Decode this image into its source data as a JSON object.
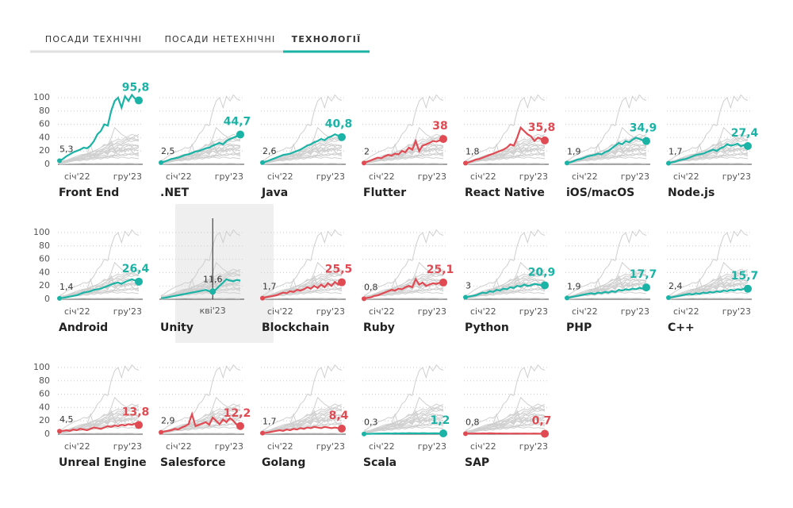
{
  "tabs": [
    "ПОСАДИ ТЕХНІЧНІ",
    "ПОСАДИ НЕТЕХНІЧНІ",
    "ТЕХНОЛОГІЇ"
  ],
  "active_tab": 2,
  "chart_data": {
    "type": "line",
    "categories": [
      "січ'22",
      null,
      null,
      null,
      null,
      null,
      null,
      null,
      null,
      null,
      null,
      null,
      null,
      null,
      null,
      "кві'23",
      null,
      null,
      null,
      null,
      null,
      null,
      null,
      "гру'23"
    ],
    "ylim": [
      0,
      110
    ],
    "yticks": [
      0,
      20,
      40,
      60,
      80,
      100
    ],
    "grid": true,
    "hover": {
      "series": 8,
      "index": 15
    },
    "series": [
      {
        "name": "Front End",
        "color": "#1ab3a6",
        "values": [
          5.3,
          8,
          12,
          15,
          18,
          20,
          22,
          25,
          24,
          28,
          35,
          45,
          50,
          60,
          58,
          80,
          95,
          100,
          85,
          102,
          95,
          104,
          98,
          95.8
        ],
        "value_labels": [
          "5,3",
          null,
          null,
          null,
          null,
          null,
          null,
          null,
          null,
          null,
          null,
          null,
          null,
          null,
          null,
          null,
          null,
          null,
          null,
          null,
          null,
          null,
          null,
          "95,8"
        ]
      },
      {
        "name": ".NET",
        "color": "#1ab3a6",
        "values": [
          2.5,
          4,
          6,
          8,
          9,
          10,
          12,
          14,
          15,
          17,
          19,
          20,
          22,
          24,
          25,
          28,
          30,
          32,
          30,
          35,
          38,
          40,
          42,
          44.7
        ],
        "value_labels": [
          "2,5",
          null,
          null,
          null,
          null,
          null,
          null,
          null,
          null,
          null,
          null,
          null,
          null,
          null,
          null,
          null,
          null,
          null,
          null,
          null,
          null,
          null,
          null,
          "44,7"
        ]
      },
      {
        "name": "Java",
        "color": "#1ab3a6",
        "values": [
          2.6,
          4,
          6,
          8,
          10,
          12,
          14,
          15,
          16,
          18,
          20,
          22,
          25,
          28,
          30,
          33,
          35,
          38,
          36,
          40,
          42,
          45,
          43,
          40.8
        ],
        "value_labels": [
          "2,6",
          null,
          null,
          null,
          null,
          null,
          null,
          null,
          null,
          null,
          null,
          null,
          null,
          null,
          null,
          null,
          null,
          null,
          null,
          null,
          null,
          null,
          null,
          "40,8"
        ]
      },
      {
        "name": "Flutter",
        "color": "#e04a52",
        "values": [
          2,
          4,
          6,
          8,
          10,
          9,
          12,
          14,
          13,
          16,
          15,
          20,
          18,
          25,
          22,
          35,
          20,
          28,
          30,
          32,
          35,
          34,
          36,
          38
        ],
        "value_labels": [
          "2",
          null,
          null,
          null,
          null,
          null,
          null,
          null,
          null,
          null,
          null,
          null,
          null,
          null,
          null,
          null,
          null,
          null,
          null,
          null,
          null,
          null,
          null,
          "38"
        ]
      },
      {
        "name": "React Native",
        "color": "#e04a52",
        "values": [
          1.8,
          3,
          5,
          7,
          8,
          10,
          12,
          14,
          16,
          18,
          20,
          22,
          25,
          30,
          28,
          40,
          55,
          50,
          45,
          42,
          35,
          40,
          38,
          35.8
        ],
        "value_labels": [
          "1,8",
          null,
          null,
          null,
          null,
          null,
          null,
          null,
          null,
          null,
          null,
          null,
          null,
          null,
          null,
          null,
          null,
          null,
          null,
          null,
          null,
          null,
          null,
          "35,8"
        ]
      },
      {
        "name": "iOS/macOS",
        "color": "#1ab3a6",
        "values": [
          1.9,
          3,
          5,
          7,
          8,
          10,
          12,
          13,
          14,
          16,
          15,
          18,
          20,
          24,
          28,
          32,
          30,
          35,
          33,
          37,
          40,
          38,
          36,
          34.9
        ],
        "value_labels": [
          "1,9",
          null,
          null,
          null,
          null,
          null,
          null,
          null,
          null,
          null,
          null,
          null,
          null,
          null,
          null,
          null,
          null,
          null,
          null,
          null,
          null,
          null,
          null,
          "34,9"
        ]
      },
      {
        "name": "Node.js",
        "color": "#1ab3a6",
        "values": [
          1.7,
          3,
          4,
          6,
          7,
          8,
          10,
          12,
          14,
          15,
          16,
          18,
          20,
          22,
          20,
          24,
          26,
          30,
          28,
          29,
          31,
          27,
          29,
          27.4
        ],
        "value_labels": [
          "1,7",
          null,
          null,
          null,
          null,
          null,
          null,
          null,
          null,
          null,
          null,
          null,
          null,
          null,
          null,
          null,
          null,
          null,
          null,
          null,
          null,
          null,
          null,
          "27,4"
        ]
      },
      {
        "name": "Android",
        "color": "#1ab3a6",
        "values": [
          1.4,
          2,
          3,
          4,
          5,
          6,
          8,
          10,
          11,
          12,
          14,
          15,
          16,
          18,
          20,
          22,
          24,
          25,
          23,
          26,
          28,
          30,
          28,
          26.4
        ],
        "value_labels": [
          "1,4",
          null,
          null,
          null,
          null,
          null,
          null,
          null,
          null,
          null,
          null,
          null,
          null,
          null,
          null,
          null,
          null,
          null,
          null,
          null,
          null,
          null,
          null,
          "26,4"
        ]
      },
      {
        "name": "Unity",
        "color": "#1ab3a6",
        "values": [
          1.5,
          2,
          3,
          4,
          5,
          6,
          7,
          8,
          9,
          10,
          11,
          12,
          13,
          14,
          12,
          11.6,
          15,
          20,
          25,
          30,
          28,
          27,
          29,
          28
        ],
        "value_labels": [
          null,
          null,
          null,
          null,
          null,
          null,
          null,
          null,
          null,
          null,
          null,
          null,
          null,
          null,
          null,
          "11,6",
          null,
          null,
          null,
          null,
          null,
          null,
          null,
          null
        ]
      },
      {
        "name": "Blockchain",
        "color": "#e04a52",
        "values": [
          1.7,
          3,
          4,
          5,
          6,
          8,
          10,
          9,
          12,
          11,
          14,
          13,
          15,
          18,
          16,
          20,
          17,
          22,
          18,
          24,
          20,
          26,
          22,
          25.5
        ],
        "value_labels": [
          "1,7",
          null,
          null,
          null,
          null,
          null,
          null,
          null,
          null,
          null,
          null,
          null,
          null,
          null,
          null,
          null,
          null,
          null,
          null,
          null,
          null,
          null,
          null,
          "25,5"
        ]
      },
      {
        "name": "Ruby",
        "color": "#e04a52",
        "values": [
          0.8,
          2,
          3,
          5,
          6,
          8,
          10,
          12,
          14,
          13,
          16,
          15,
          18,
          20,
          18,
          30,
          22,
          25,
          20,
          22,
          24,
          23,
          25,
          25.1
        ],
        "value_labels": [
          "0,8",
          null,
          null,
          null,
          null,
          null,
          null,
          null,
          null,
          null,
          null,
          null,
          null,
          null,
          null,
          null,
          null,
          null,
          null,
          null,
          null,
          null,
          null,
          "25,1"
        ]
      },
      {
        "name": "Python",
        "color": "#1ab3a6",
        "values": [
          3,
          4,
          5,
          6,
          8,
          10,
          9,
          12,
          11,
          14,
          13,
          16,
          15,
          18,
          17,
          20,
          19,
          22,
          20,
          21,
          23,
          22,
          21,
          20.9
        ],
        "value_labels": [
          "3",
          null,
          null,
          null,
          null,
          null,
          null,
          null,
          null,
          null,
          null,
          null,
          null,
          null,
          null,
          null,
          null,
          null,
          null,
          null,
          null,
          null,
          null,
          "20,9"
        ]
      },
      {
        "name": "PHP",
        "color": "#1ab3a6",
        "values": [
          1.9,
          3,
          4,
          5,
          6,
          7,
          8,
          9,
          8,
          10,
          9,
          11,
          10,
          12,
          11,
          14,
          13,
          15,
          14,
          16,
          15,
          17,
          16,
          17.7
        ],
        "value_labels": [
          "1,9",
          null,
          null,
          null,
          null,
          null,
          null,
          null,
          null,
          null,
          null,
          null,
          null,
          null,
          null,
          null,
          null,
          null,
          null,
          null,
          null,
          null,
          null,
          "17,7"
        ]
      },
      {
        "name": "C++",
        "color": "#1ab3a6",
        "values": [
          2.4,
          3,
          4,
          5,
          6,
          7,
          8,
          7,
          9,
          8,
          10,
          9,
          11,
          10,
          12,
          11,
          13,
          12,
          14,
          13,
          15,
          14,
          16,
          15.7
        ],
        "value_labels": [
          "2,4",
          null,
          null,
          null,
          null,
          null,
          null,
          null,
          null,
          null,
          null,
          null,
          null,
          null,
          null,
          null,
          null,
          null,
          null,
          null,
          null,
          null,
          null,
          "15,7"
        ]
      },
      {
        "name": "Unreal Engine",
        "color": "#e04a52",
        "values": [
          4.5,
          5,
          6,
          5,
          7,
          6,
          8,
          7,
          6,
          8,
          10,
          9,
          8,
          10,
          12,
          11,
          13,
          12,
          14,
          13,
          15,
          14,
          16,
          13.8
        ],
        "value_labels": [
          "4,5",
          null,
          null,
          null,
          null,
          null,
          null,
          null,
          null,
          null,
          null,
          null,
          null,
          null,
          null,
          null,
          null,
          null,
          null,
          null,
          null,
          null,
          null,
          "13,8"
        ]
      },
      {
        "name": "Salesforce",
        "color": "#e04a52",
        "values": [
          2.9,
          4,
          5,
          6,
          8,
          7,
          10,
          12,
          15,
          30,
          12,
          14,
          16,
          18,
          14,
          25,
          20,
          15,
          22,
          18,
          24,
          20,
          14,
          12.2
        ],
        "value_labels": [
          "2,9",
          null,
          null,
          null,
          null,
          null,
          null,
          null,
          null,
          null,
          null,
          null,
          null,
          null,
          null,
          null,
          null,
          null,
          null,
          null,
          null,
          null,
          null,
          "12,2"
        ]
      },
      {
        "name": "Golang",
        "color": "#e04a52",
        "values": [
          1.7,
          2,
          3,
          4,
          5,
          6,
          5,
          7,
          6,
          8,
          7,
          9,
          8,
          10,
          9,
          11,
          10,
          9,
          11,
          10,
          9,
          10,
          9,
          8.4
        ],
        "value_labels": [
          "1,7",
          null,
          null,
          null,
          null,
          null,
          null,
          null,
          null,
          null,
          null,
          null,
          null,
          null,
          null,
          null,
          null,
          null,
          null,
          null,
          null,
          null,
          null,
          "8,4"
        ]
      },
      {
        "name": "Scala",
        "color": "#1ab3a6",
        "values": [
          0.3,
          0.5,
          0.6,
          0.8,
          0.9,
          1,
          1.1,
          1.2,
          1,
          1.3,
          1.1,
          1.4,
          1.2,
          1.5,
          1.3,
          1.4,
          1.2,
          1.5,
          1.3,
          1.2,
          1.4,
          1.3,
          1.1,
          1.2
        ],
        "value_labels": [
          "0,3",
          null,
          null,
          null,
          null,
          null,
          null,
          null,
          null,
          null,
          null,
          null,
          null,
          null,
          null,
          null,
          null,
          null,
          null,
          null,
          null,
          null,
          null,
          "1,2"
        ]
      },
      {
        "name": "SAP",
        "color": "#e04a52",
        "values": [
          0.8,
          0.9,
          1,
          1.1,
          1,
          1.2,
          1.1,
          1.3,
          1.2,
          1,
          1.1,
          0.9,
          1,
          0.8,
          0.9,
          1,
          0.8,
          0.9,
          0.7,
          0.8,
          0.9,
          0.8,
          0.7,
          0.7
        ],
        "value_labels": [
          "0,8",
          null,
          null,
          null,
          null,
          null,
          null,
          null,
          null,
          null,
          null,
          null,
          null,
          null,
          null,
          null,
          null,
          null,
          null,
          null,
          null,
          null,
          null,
          "0,7"
        ]
      }
    ]
  }
}
